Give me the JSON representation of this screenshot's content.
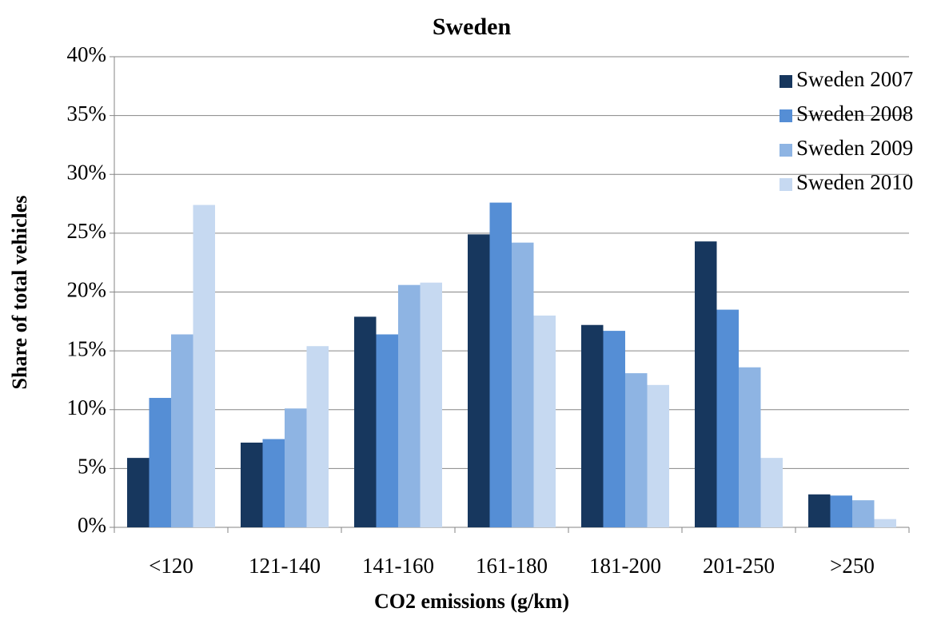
{
  "chart_data": {
    "type": "bar",
    "title": "Sweden",
    "x_label": "CO2 emissions (g/km)",
    "y_label": "Share of total vehicles",
    "categories": [
      "<120",
      "121-140",
      "141-160",
      "161-180",
      "181-200",
      "201-250",
      ">250"
    ],
    "series": [
      {
        "name": "Sweden 2007",
        "color": "#17375e",
        "values": [
          5.9,
          7.2,
          17.9,
          24.9,
          17.2,
          24.3,
          2.8
        ]
      },
      {
        "name": "Sweden 2008",
        "color": "#558ed5",
        "values": [
          11.0,
          7.5,
          16.4,
          27.6,
          16.7,
          18.5,
          2.7
        ]
      },
      {
        "name": "Sweden 2009",
        "color": "#8eb4e3",
        "values": [
          16.4,
          10.1,
          20.6,
          24.2,
          13.1,
          13.6,
          2.3
        ]
      },
      {
        "name": "Sweden 2010",
        "color": "#c6d9f1",
        "values": [
          27.4,
          15.4,
          20.8,
          18.0,
          12.1,
          5.9,
          0.7
        ]
      }
    ],
    "ylim": [
      0,
      40
    ],
    "yticks": [
      {
        "value": 0,
        "label": "0%"
      },
      {
        "value": 5,
        "label": "5%"
      },
      {
        "value": 10,
        "label": "10%"
      },
      {
        "value": 15,
        "label": "15%"
      },
      {
        "value": 20,
        "label": "20%"
      },
      {
        "value": 25,
        "label": "25%"
      },
      {
        "value": 30,
        "label": "30%"
      },
      {
        "value": 35,
        "label": "35%"
      },
      {
        "value": 40,
        "label": "40%"
      }
    ],
    "grid": true,
    "legend_position": "top-right"
  }
}
